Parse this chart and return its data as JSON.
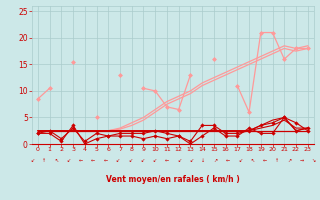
{
  "x": [
    0,
    1,
    2,
    3,
    4,
    5,
    6,
    7,
    8,
    9,
    10,
    11,
    12,
    13,
    14,
    15,
    16,
    17,
    18,
    19,
    20,
    21,
    22,
    23
  ],
  "series": [
    {
      "y": [
        8.5,
        10.5,
        null,
        15.5,
        null,
        5.0,
        null,
        13.0,
        null,
        10.5,
        10.0,
        7.0,
        6.5,
        13.0,
        null,
        16.0,
        null,
        11.0,
        6.0,
        21.0,
        21.0,
        16.0,
        18.0,
        18.0
      ],
      "color": "#ff9999",
      "lw": 0.9,
      "marker": "D",
      "ms": 2.5,
      "zorder": 3
    },
    {
      "y": [
        2.5,
        2.5,
        2.5,
        2.5,
        2.5,
        2.5,
        2.5,
        3.0,
        4.0,
        5.0,
        6.5,
        8.0,
        9.0,
        10.0,
        11.5,
        12.5,
        13.5,
        14.5,
        15.5,
        16.5,
        17.5,
        18.5,
        18.0,
        18.5
      ],
      "color": "#ff9999",
      "lw": 0.9,
      "marker": null,
      "ms": 0,
      "zorder": 2
    },
    {
      "y": [
        2.5,
        2.5,
        2.5,
        2.5,
        2.5,
        2.5,
        2.5,
        2.8,
        3.5,
        4.5,
        6.0,
        7.5,
        8.5,
        9.5,
        11.0,
        12.0,
        13.0,
        14.0,
        15.0,
        16.0,
        17.0,
        18.0,
        17.5,
        18.0
      ],
      "color": "#ff9999",
      "lw": 0.9,
      "marker": null,
      "ms": 0,
      "zorder": 2
    },
    {
      "y": [
        2.5,
        2.5,
        2.5,
        2.5,
        2.5,
        2.5,
        2.5,
        2.5,
        2.5,
        2.5,
        2.5,
        2.5,
        2.5,
        2.5,
        2.5,
        2.5,
        2.5,
        2.5,
        2.5,
        2.5,
        2.5,
        2.5,
        2.5,
        2.5
      ],
      "color": "#cc0000",
      "lw": 0.9,
      "marker": null,
      "ms": 0,
      "zorder": 2
    },
    {
      "y": [
        2.0,
        2.0,
        0.5,
        3.5,
        0.0,
        1.0,
        1.5,
        1.5,
        1.5,
        1.0,
        1.5,
        1.0,
        1.5,
        0.0,
        1.5,
        3.0,
        1.5,
        1.5,
        3.0,
        2.0,
        2.0,
        5.0,
        4.0,
        2.5
      ],
      "color": "#cc0000",
      "lw": 0.8,
      "marker": "D",
      "ms": 2.2,
      "zorder": 3
    },
    {
      "y": [
        2.0,
        2.5,
        1.0,
        3.0,
        0.5,
        2.0,
        1.5,
        2.0,
        2.0,
        2.0,
        2.5,
        2.0,
        1.5,
        0.5,
        3.5,
        3.5,
        2.0,
        2.0,
        2.5,
        3.5,
        4.0,
        5.0,
        2.5,
        3.0
      ],
      "color": "#cc0000",
      "lw": 0.8,
      "marker": "D",
      "ms": 2.2,
      "zorder": 3
    },
    {
      "y": [
        2.5,
        2.5,
        2.5,
        2.5,
        2.5,
        2.5,
        2.5,
        2.5,
        2.5,
        2.5,
        2.5,
        2.5,
        2.5,
        2.5,
        2.5,
        2.5,
        2.5,
        2.5,
        2.5,
        3.0,
        3.5,
        4.5,
        3.0,
        3.0
      ],
      "color": "#cc0000",
      "lw": 0.8,
      "marker": null,
      "ms": 0,
      "zorder": 2
    },
    {
      "y": [
        2.5,
        2.5,
        2.5,
        2.5,
        2.5,
        2.5,
        2.5,
        2.5,
        2.5,
        2.5,
        2.5,
        2.5,
        2.5,
        2.5,
        2.5,
        2.5,
        2.5,
        2.5,
        2.5,
        3.5,
        4.5,
        5.0,
        2.5,
        3.0
      ],
      "color": "#cc0000",
      "lw": 0.8,
      "marker": null,
      "ms": 0,
      "zorder": 2
    }
  ],
  "xlabel": "Vent moyen/en rafales ( km/h )",
  "ylim": [
    0,
    26
  ],
  "xlim": [
    -0.5,
    23.5
  ],
  "yticks": [
    0,
    5,
    10,
    15,
    20,
    25
  ],
  "xticks": [
    0,
    1,
    2,
    3,
    4,
    5,
    6,
    7,
    8,
    9,
    10,
    11,
    12,
    13,
    14,
    15,
    16,
    17,
    18,
    19,
    20,
    21,
    22,
    23
  ],
  "bg_color": "#cce8e8",
  "grid_color": "#aacccc",
  "text_color": "#cc0000",
  "arrow_symbols": [
    "↙",
    "↑",
    "↖",
    "↙",
    "←",
    "←",
    "←",
    "↙",
    "↙",
    "↙",
    "↙",
    "←",
    "↙",
    "↙",
    "↓",
    "↗",
    "←",
    "↙",
    "↖",
    "←",
    "↑",
    "↗",
    "→",
    "↘"
  ]
}
